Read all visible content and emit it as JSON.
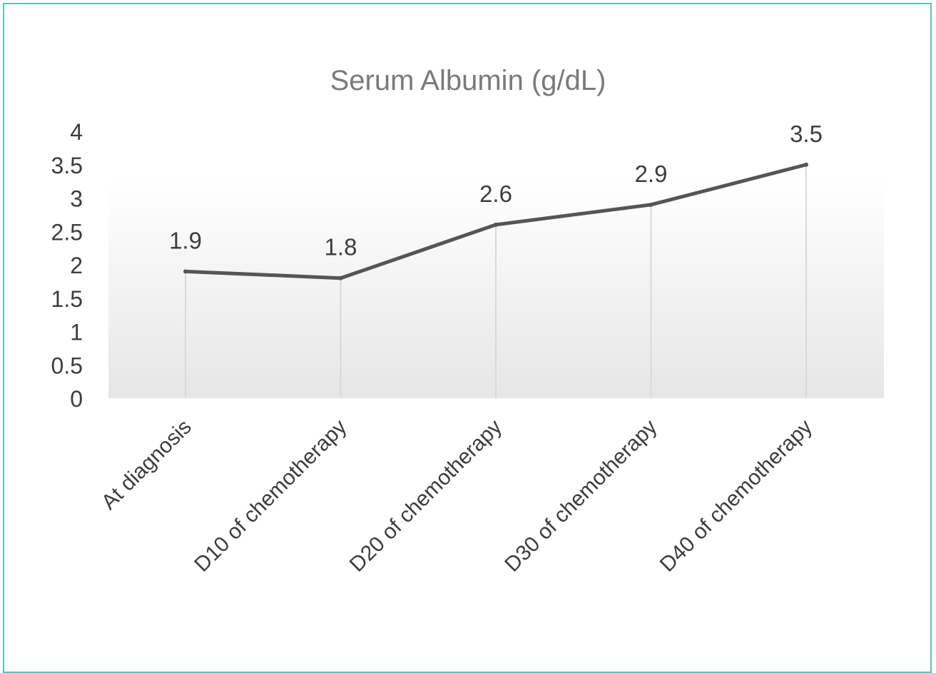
{
  "chart_data": {
    "type": "line",
    "title": "Serum Albumin (g/dL)",
    "xlabel": "",
    "ylabel": "",
    "categories": [
      "At diagnosis",
      "D10 of  chemotherapy",
      "D20 of chemotherapy",
      "D30 of chemotherapy",
      "D40 of chemotherapy"
    ],
    "series": [
      {
        "values": [
          1.9,
          1.8,
          2.6,
          2.9,
          3.5
        ]
      }
    ],
    "data_labels": [
      "1.9",
      "1.8",
      "2.6",
      "2.9",
      "3.5"
    ],
    "y_ticks": [
      "0",
      "0.5",
      "1",
      "1.5",
      "2",
      "2.5",
      "3",
      "3.5",
      "4"
    ],
    "ylim": [
      0,
      4
    ],
    "grid": false,
    "drop_lines": true,
    "legend": "none",
    "colors": {
      "line": "#555555",
      "drop_line": "#d9d9d9",
      "frame": "#5bbfca",
      "plot_shade_top": "#ffffff",
      "plot_shade_bottom": "#e6e6e6"
    }
  }
}
